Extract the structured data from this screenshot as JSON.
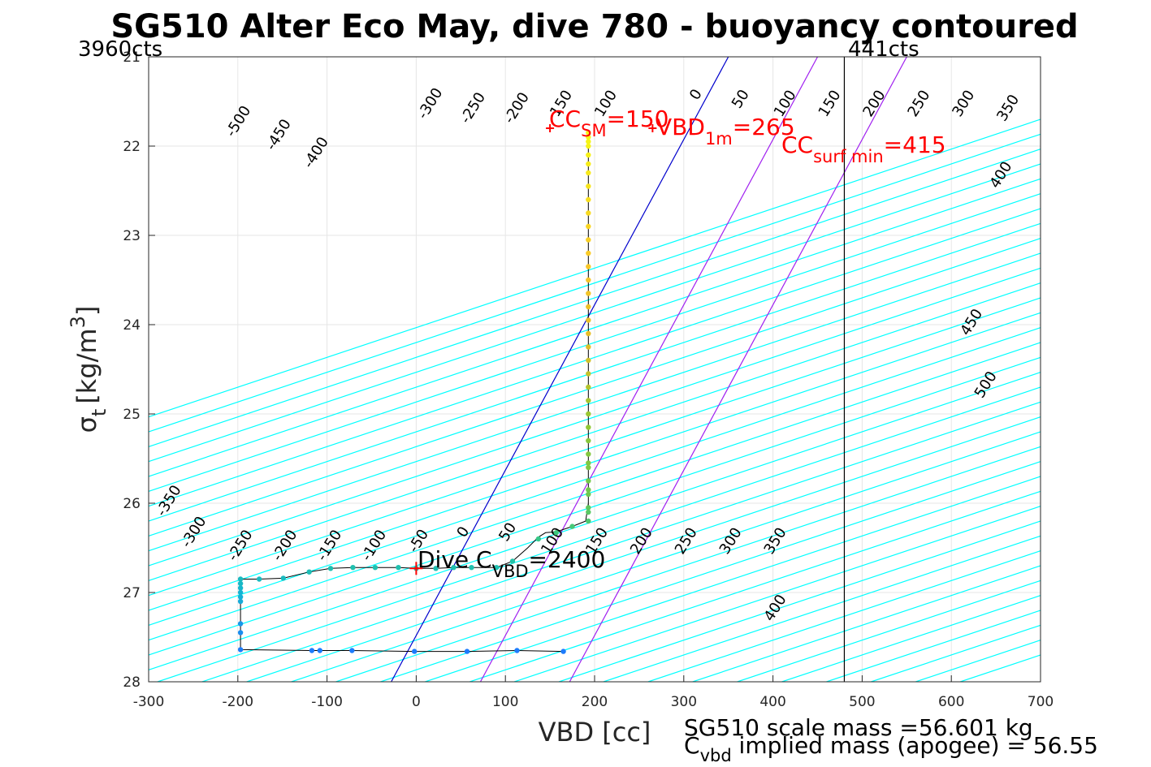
{
  "chart_data": {
    "type": "scatter",
    "title": "SG510 Alter Eco May, dive 780 - buoyancy contoured",
    "xlabel": "VBD [cc]",
    "ylabel_symbol": "σ",
    "ylabel_sub": "t",
    "ylabel_unit": "[kg/m",
    "ylabel_sup": "3",
    "ylabel_close": "]",
    "xlim": [
      -300,
      700
    ],
    "ylim": [
      28,
      21
    ],
    "y_reversed": true,
    "grid": true,
    "xticks": [
      -300,
      -200,
      -100,
      0,
      100,
      200,
      300,
      400,
      500,
      600,
      700
    ],
    "xtick_labels": [
      "-300",
      "-200",
      "-100",
      "0",
      "100",
      "200",
      "300",
      "400",
      "500",
      "600",
      "700"
    ],
    "yticks": [
      21,
      22,
      23,
      24,
      25,
      26,
      27,
      28
    ],
    "ytick_labels": [
      "21",
      "22",
      "23",
      "24",
      "25",
      "26",
      "27",
      "28"
    ],
    "contours": {
      "color": "#00ffff",
      "slope_cc_per_sigma": -300,
      "levels": [
        -800,
        -750,
        -700,
        -650,
        -600,
        -550,
        -500,
        -450,
        -400,
        -350,
        -300,
        -250,
        -200,
        -150,
        -100,
        -50,
        0,
        50,
        100,
        150,
        200,
        250,
        300,
        350,
        400,
        450,
        500,
        550,
        600,
        650,
        700,
        750,
        800,
        850,
        900,
        950,
        1000
      ],
      "reference_vbd_at_sigma_26_7": 0
    },
    "contour_labels": [
      {
        "text": "-500",
        "x": -195,
        "y": 21.75
      },
      {
        "text": "-450",
        "x": -150,
        "y": 21.9
      },
      {
        "text": "-400",
        "x": -108,
        "y": 22.1
      },
      {
        "text": "-300",
        "x": 20,
        "y": 21.55
      },
      {
        "text": "-250",
        "x": 68,
        "y": 21.6
      },
      {
        "text": "-200",
        "x": 117,
        "y": 21.6
      },
      {
        "text": "150",
        "x": 167,
        "y": 21.55
      },
      {
        "text": "100",
        "x": 217,
        "y": 21.55
      },
      {
        "text": "0",
        "x": 318,
        "y": 21.45
      },
      {
        "text": "50",
        "x": 368,
        "y": 21.5
      },
      {
        "text": "100",
        "x": 418,
        "y": 21.55
      },
      {
        "text": "150",
        "x": 468,
        "y": 21.55
      },
      {
        "text": "200",
        "x": 518,
        "y": 21.55
      },
      {
        "text": "250",
        "x": 568,
        "y": 21.55
      },
      {
        "text": "300",
        "x": 618,
        "y": 21.55
      },
      {
        "text": "350",
        "x": 668,
        "y": 21.6
      },
      {
        "text": "400",
        "x": 660,
        "y": 22.35
      },
      {
        "text": "450",
        "x": 627,
        "y": 24.0
      },
      {
        "text": "500",
        "x": 643,
        "y": 24.7
      },
      {
        "text": "-350",
        "x": -273,
        "y": 26.0
      },
      {
        "text": "-300",
        "x": -245,
        "y": 26.35
      },
      {
        "text": "-250",
        "x": -193,
        "y": 26.5
      },
      {
        "text": "-200",
        "x": -143,
        "y": 26.5
      },
      {
        "text": "-150",
        "x": -93,
        "y": 26.5
      },
      {
        "text": "-100",
        "x": -43,
        "y": 26.5
      },
      {
        "text": "-50",
        "x": 7,
        "y": 26.45
      },
      {
        "text": "0",
        "x": 57,
        "y": 26.35
      },
      {
        "text": "50",
        "x": 107,
        "y": 26.35
      },
      {
        "text": "100",
        "x": 157,
        "y": 26.45
      },
      {
        "text": "150",
        "x": 207,
        "y": 26.45
      },
      {
        "text": "200",
        "x": 257,
        "y": 26.45
      },
      {
        "text": "250",
        "x": 307,
        "y": 26.45
      },
      {
        "text": "300",
        "x": 357,
        "y": 26.45
      },
      {
        "text": "350",
        "x": 407,
        "y": 26.45
      },
      {
        "text": "400",
        "x": 407,
        "y": 27.2
      }
    ],
    "lines": [
      {
        "color": "#0000cc",
        "x": [
          -28,
          350
        ],
        "y": [
          28,
          21
        ]
      },
      {
        "color": "#a020f0",
        "x": [
          72,
          450
        ],
        "y": [
          28,
          21
        ]
      },
      {
        "color": "#a020f0",
        "x": [
          172,
          550
        ],
        "y": [
          28,
          21
        ]
      },
      {
        "color": "#000000",
        "x": [
          480,
          480
        ],
        "y": [
          28,
          21
        ]
      }
    ],
    "profile": {
      "color": "#000000",
      "x": [
        165,
        113,
        57,
        -2,
        -72,
        -108,
        -117,
        -197,
        -197,
        -197,
        -197,
        -197,
        -197,
        -197,
        -197,
        -197,
        -176,
        -149,
        -120,
        -96,
        -71,
        -46,
        -20,
        0,
        22,
        42,
        62,
        90,
        108,
        125,
        137,
        145,
        157,
        175,
        190,
        193,
        193,
        193,
        193,
        193,
        193,
        193,
        193,
        193,
        193,
        193,
        193,
        193,
        193,
        193,
        193,
        193,
        193
      ],
      "y": [
        27.66,
        27.65,
        27.66,
        27.66,
        27.65,
        27.65,
        27.65,
        27.64,
        27.6,
        27.45,
        27.35,
        27.1,
        27.0,
        26.95,
        26.9,
        26.85,
        26.85,
        26.84,
        26.77,
        26.73,
        26.72,
        26.72,
        26.72,
        26.73,
        26.73,
        26.72,
        26.72,
        26.72,
        26.65,
        26.5,
        26.38,
        26.33,
        26.32,
        26.26,
        26.2,
        26.0,
        25.5,
        25.0,
        24.5,
        24.0,
        23.5,
        23.0,
        22.5,
        22.2,
        22.0,
        21.9,
        24.9,
        25.3,
        25.7,
        26.05,
        23.2,
        22.8,
        22.4
      ]
    },
    "points": {
      "x": [
        165,
        113,
        57,
        -2,
        -72,
        -108,
        -117,
        -197,
        -197,
        -197,
        -197,
        -197,
        -197,
        -197,
        -197,
        -197,
        -176,
        -149,
        -120,
        -96,
        -71,
        -46,
        -20,
        0,
        22,
        42,
        62,
        90,
        108,
        137,
        157,
        175,
        193,
        193,
        193,
        193,
        193,
        193,
        193,
        193,
        193,
        193,
        193,
        193,
        193,
        193,
        193,
        193,
        193,
        193,
        193,
        193,
        193,
        193,
        193,
        193,
        193,
        193,
        193,
        193,
        193,
        193,
        193,
        193,
        193,
        193,
        193,
        193
      ],
      "y": [
        27.66,
        27.65,
        27.66,
        27.66,
        27.65,
        27.65,
        27.65,
        27.64,
        27.45,
        27.35,
        27.1,
        27.05,
        27.0,
        26.95,
        26.9,
        26.85,
        26.85,
        26.84,
        26.77,
        26.73,
        26.72,
        26.72,
        26.72,
        26.73,
        26.73,
        26.72,
        26.72,
        26.72,
        26.65,
        26.4,
        26.33,
        26.26,
        26.2,
        26.05,
        25.9,
        25.75,
        25.6,
        25.45,
        25.3,
        25.15,
        25.0,
        24.85,
        24.7,
        24.55,
        24.4,
        24.25,
        24.1,
        23.95,
        23.8,
        23.65,
        23.5,
        23.35,
        23.2,
        23.05,
        22.9,
        22.75,
        22.6,
        22.45,
        22.3,
        22.2,
        22.1,
        22.0,
        21.95,
        21.9,
        21.85,
        26.1,
        25.85,
        25.55
      ]
    },
    "red_markers": [
      {
        "x": 0,
        "y": 26.73,
        "size": 8
      },
      {
        "x": 150,
        "y": 21.8,
        "size": 5
      },
      {
        "x": 265,
        "y": 21.8,
        "size": 5
      }
    ],
    "annotations": [
      {
        "text": "CC",
        "sub": "SM",
        "tail": "=150",
        "color": "red"
      },
      {
        "text": "VBD",
        "sub": "1m",
        "tail": "=265",
        "color": "red"
      },
      {
        "text": "CC",
        "sub": "surf min",
        "tail": "=415",
        "color": "red"
      },
      {
        "text": "Dive C",
        "sub": "VBD",
        "tail": "=2400",
        "color": "black"
      }
    ],
    "counts_left": "3960cts",
    "counts_right": "441cts",
    "footer_line1": "SG510 scale mass =56.601 kg",
    "footer_line2_pre": "C",
    "footer_line2_sub": "vbd",
    "footer_line2_tail": " implied mass (apogee) = 56.55"
  }
}
